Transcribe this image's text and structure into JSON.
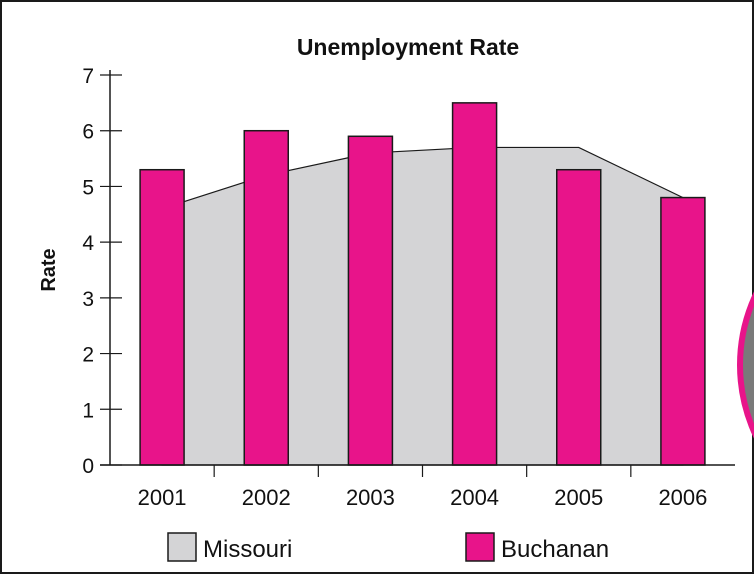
{
  "chart_data": {
    "type": "bar",
    "title": "Unemployment Rate",
    "xlabel": "",
    "ylabel": "Rate",
    "ylim": [
      0,
      7
    ],
    "yticks": [
      0,
      1,
      2,
      3,
      4,
      5,
      6,
      7
    ],
    "categories": [
      "2001",
      "2002",
      "2003",
      "2004",
      "2005",
      "2006"
    ],
    "series": [
      {
        "name": "Missouri",
        "kind": "area",
        "color": "#d4d4d6",
        "values": [
          4.6,
          5.2,
          5.6,
          5.7,
          5.7,
          4.8
        ]
      },
      {
        "name": "Buchanan",
        "kind": "bar",
        "color": "#e8148a",
        "values": [
          5.3,
          6.0,
          5.9,
          6.5,
          5.3,
          4.8
        ]
      }
    ],
    "grid": false,
    "legend_position": "bottom"
  }
}
